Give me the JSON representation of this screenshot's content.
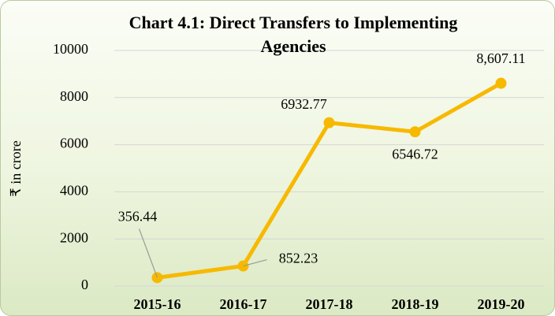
{
  "chart_data": {
    "type": "line",
    "title": "Chart 4.1: Direct Transfers to Implementing Agencies",
    "y_label": "₹ in crore",
    "categories": [
      "2015-16",
      "2016-17",
      "2017-18",
      "2018-19",
      "2019-20"
    ],
    "series": [
      {
        "name": "Direct Transfers",
        "color": "#f7b900",
        "values": [
          356.44,
          852.23,
          6932.77,
          6546.72,
          8607.11
        ],
        "value_labels": [
          "356.44",
          "852.23",
          "6932.77",
          "6546.72",
          "8,607.11"
        ]
      }
    ],
    "ylim": [
      0,
      10000
    ],
    "yticks": [
      0,
      2000,
      4000,
      6000,
      8000,
      10000
    ],
    "grid": true
  }
}
